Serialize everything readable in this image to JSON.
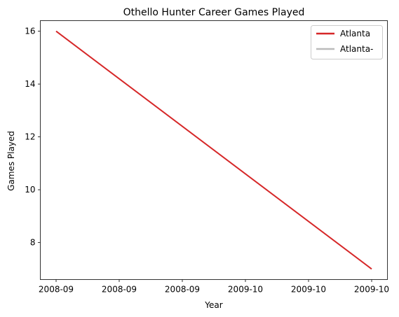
{
  "chart_data": {
    "type": "line",
    "title": "Othello Hunter Career Games Played",
    "xlabel": "Year",
    "ylabel": "Games Played",
    "x_tick_labels": [
      "2008-09",
      "2008-09",
      "2008-09",
      "2009-10",
      "2009-10",
      "2009-10"
    ],
    "x": [
      0,
      1
    ],
    "ylim": [
      6.6,
      16.4
    ],
    "y_ticks": [
      8,
      10,
      12,
      14,
      16
    ],
    "grid": false,
    "legend_position": "top-right",
    "series": [
      {
        "name": "Atlanta",
        "x": [
          0,
          1
        ],
        "values": [
          16,
          7
        ],
        "color": "#d62728"
      },
      {
        "name": "Atlanta-",
        "x": [],
        "values": [],
        "color": "#bbbbbb"
      }
    ]
  }
}
